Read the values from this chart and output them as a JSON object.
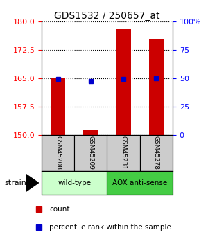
{
  "title": "GDS1532 / 250657_at",
  "samples": [
    "GSM45208",
    "GSM45209",
    "GSM45231",
    "GSM45278"
  ],
  "count_values": [
    165.0,
    151.5,
    178.0,
    175.5
  ],
  "percentile_values": [
    49.5,
    47.5,
    49.5,
    50.0
  ],
  "ylim_left": [
    150,
    180
  ],
  "ylim_right": [
    0,
    100
  ],
  "yticks_left": [
    150,
    157.5,
    165,
    172.5,
    180
  ],
  "yticks_right": [
    0,
    25,
    50,
    75,
    100
  ],
  "bar_color": "#cc0000",
  "dot_color": "#0000cc",
  "bar_width": 0.45,
  "groups": [
    {
      "label": "wild-type",
      "samples": [
        0,
        1
      ],
      "color": "#ccffcc"
    },
    {
      "label": "AOX anti-sense",
      "samples": [
        2,
        3
      ],
      "color": "#44cc44"
    }
  ],
  "strain_label": "strain",
  "legend_count_label": "count",
  "legend_percentile_label": "percentile rank within the sample",
  "bg_color": "#ffffff",
  "sample_box_color": "#cccccc",
  "title_fontsize": 10,
  "tick_fontsize": 8,
  "label_fontsize": 8
}
